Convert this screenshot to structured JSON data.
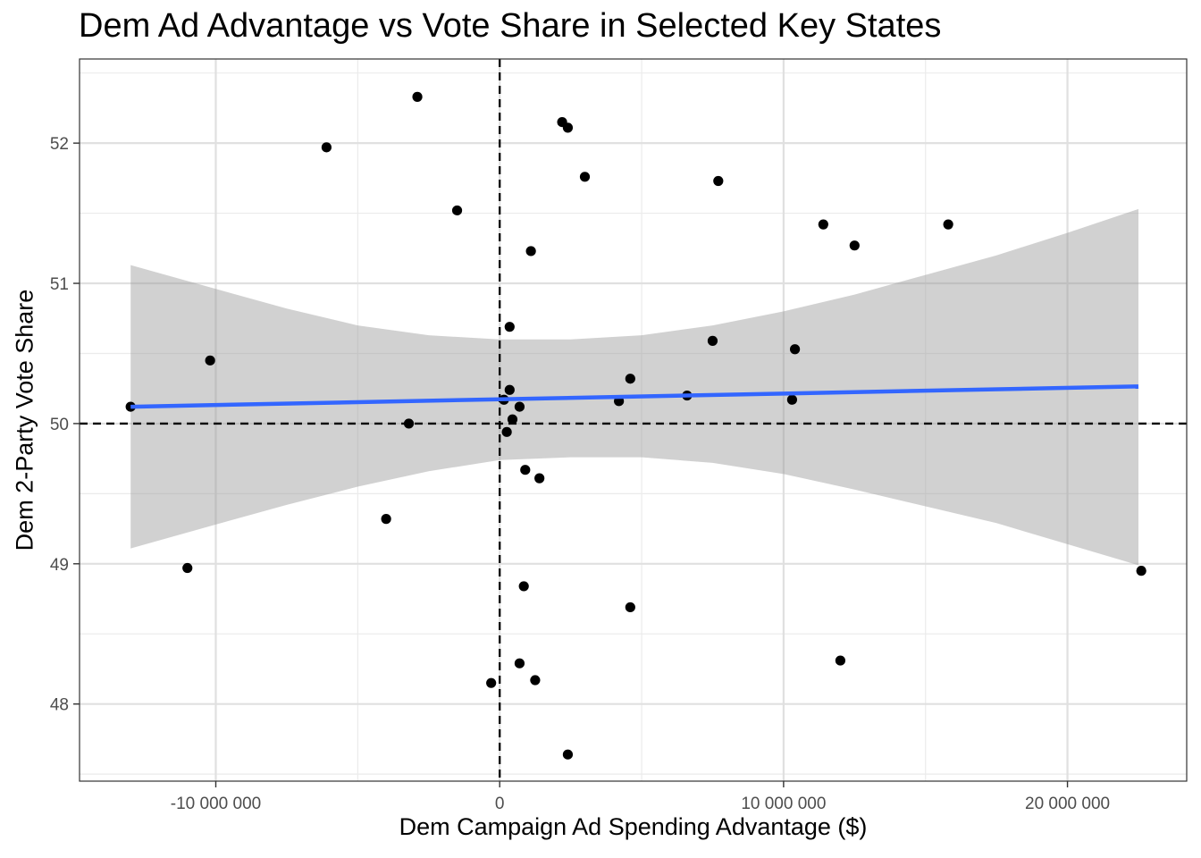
{
  "chart_data": {
    "type": "scatter",
    "title": "Dem Ad Advantage vs Vote Share in Selected Key States",
    "xlabel": "Dem Campaign Ad Spending Advantage ($)",
    "ylabel": "Dem 2-Party Vote Share",
    "xlim": [
      -14800000,
      24200000
    ],
    "ylim": [
      47.45,
      52.6
    ],
    "x_ticks": [
      -10000000,
      0,
      10000000,
      20000000
    ],
    "x_tick_labels": [
      "-10 000 000",
      "0",
      "10 000 000",
      "20 000 000"
    ],
    "y_ticks": [
      48,
      49,
      50,
      51,
      52
    ],
    "y_tick_labels": [
      "48",
      "49",
      "50",
      "51",
      "52"
    ],
    "grid": true,
    "reference_lines": {
      "x": 0,
      "y": 50,
      "style": "dashed"
    },
    "fit_line": {
      "x0": -13000000,
      "y0": 50.12,
      "x1": 22500000,
      "y1": 50.265,
      "color": "#3366ff"
    },
    "confidence_band": {
      "x": [
        -13000000,
        -10000000,
        -7500000,
        -5000000,
        -2500000,
        0,
        2500000,
        5000000,
        7500000,
        10000000,
        12500000,
        15000000,
        17500000,
        20000000,
        22500000
      ],
      "upper": [
        51.13,
        50.96,
        50.82,
        50.7,
        50.63,
        50.6,
        50.6,
        50.63,
        50.7,
        50.8,
        50.92,
        51.06,
        51.2,
        51.36,
        51.53
      ],
      "lower": [
        49.11,
        49.28,
        49.42,
        49.55,
        49.66,
        49.74,
        49.76,
        49.76,
        49.72,
        49.64,
        49.53,
        49.41,
        49.29,
        49.14,
        48.99
      ],
      "color": "#cccccc"
    },
    "points": [
      {
        "x": -13000000,
        "y": 50.12
      },
      {
        "x": -11000000,
        "y": 48.97
      },
      {
        "x": -10200000,
        "y": 50.45
      },
      {
        "x": -6100000,
        "y": 51.97
      },
      {
        "x": -4000000,
        "y": 49.32
      },
      {
        "x": -3200000,
        "y": 50.0
      },
      {
        "x": -2900000,
        "y": 52.33
      },
      {
        "x": -1500000,
        "y": 51.52
      },
      {
        "x": -300000,
        "y": 48.15
      },
      {
        "x": 150000,
        "y": 50.17
      },
      {
        "x": 250000,
        "y": 49.94
      },
      {
        "x": 350000,
        "y": 50.24
      },
      {
        "x": 350000,
        "y": 50.69
      },
      {
        "x": 450000,
        "y": 50.03
      },
      {
        "x": 700000,
        "y": 48.29
      },
      {
        "x": 700000,
        "y": 50.12
      },
      {
        "x": 850000,
        "y": 48.84
      },
      {
        "x": 900000,
        "y": 49.67
      },
      {
        "x": 1100000,
        "y": 51.23
      },
      {
        "x": 1250000,
        "y": 48.17
      },
      {
        "x": 1400000,
        "y": 49.61
      },
      {
        "x": 2200000,
        "y": 52.15
      },
      {
        "x": 2400000,
        "y": 52.11
      },
      {
        "x": 2400000,
        "y": 47.64
      },
      {
        "x": 3000000,
        "y": 51.76
      },
      {
        "x": 4200000,
        "y": 50.16
      },
      {
        "x": 4600000,
        "y": 50.32
      },
      {
        "x": 4600000,
        "y": 48.69
      },
      {
        "x": 6600000,
        "y": 50.2
      },
      {
        "x": 7500000,
        "y": 50.59
      },
      {
        "x": 7700000,
        "y": 51.73
      },
      {
        "x": 10300000,
        "y": 50.17
      },
      {
        "x": 10400000,
        "y": 50.53
      },
      {
        "x": 11400000,
        "y": 51.42
      },
      {
        "x": 12000000,
        "y": 48.31
      },
      {
        "x": 12500000,
        "y": 51.27
      },
      {
        "x": 15800000,
        "y": 51.42
      },
      {
        "x": 22600000,
        "y": 48.95
      }
    ]
  }
}
